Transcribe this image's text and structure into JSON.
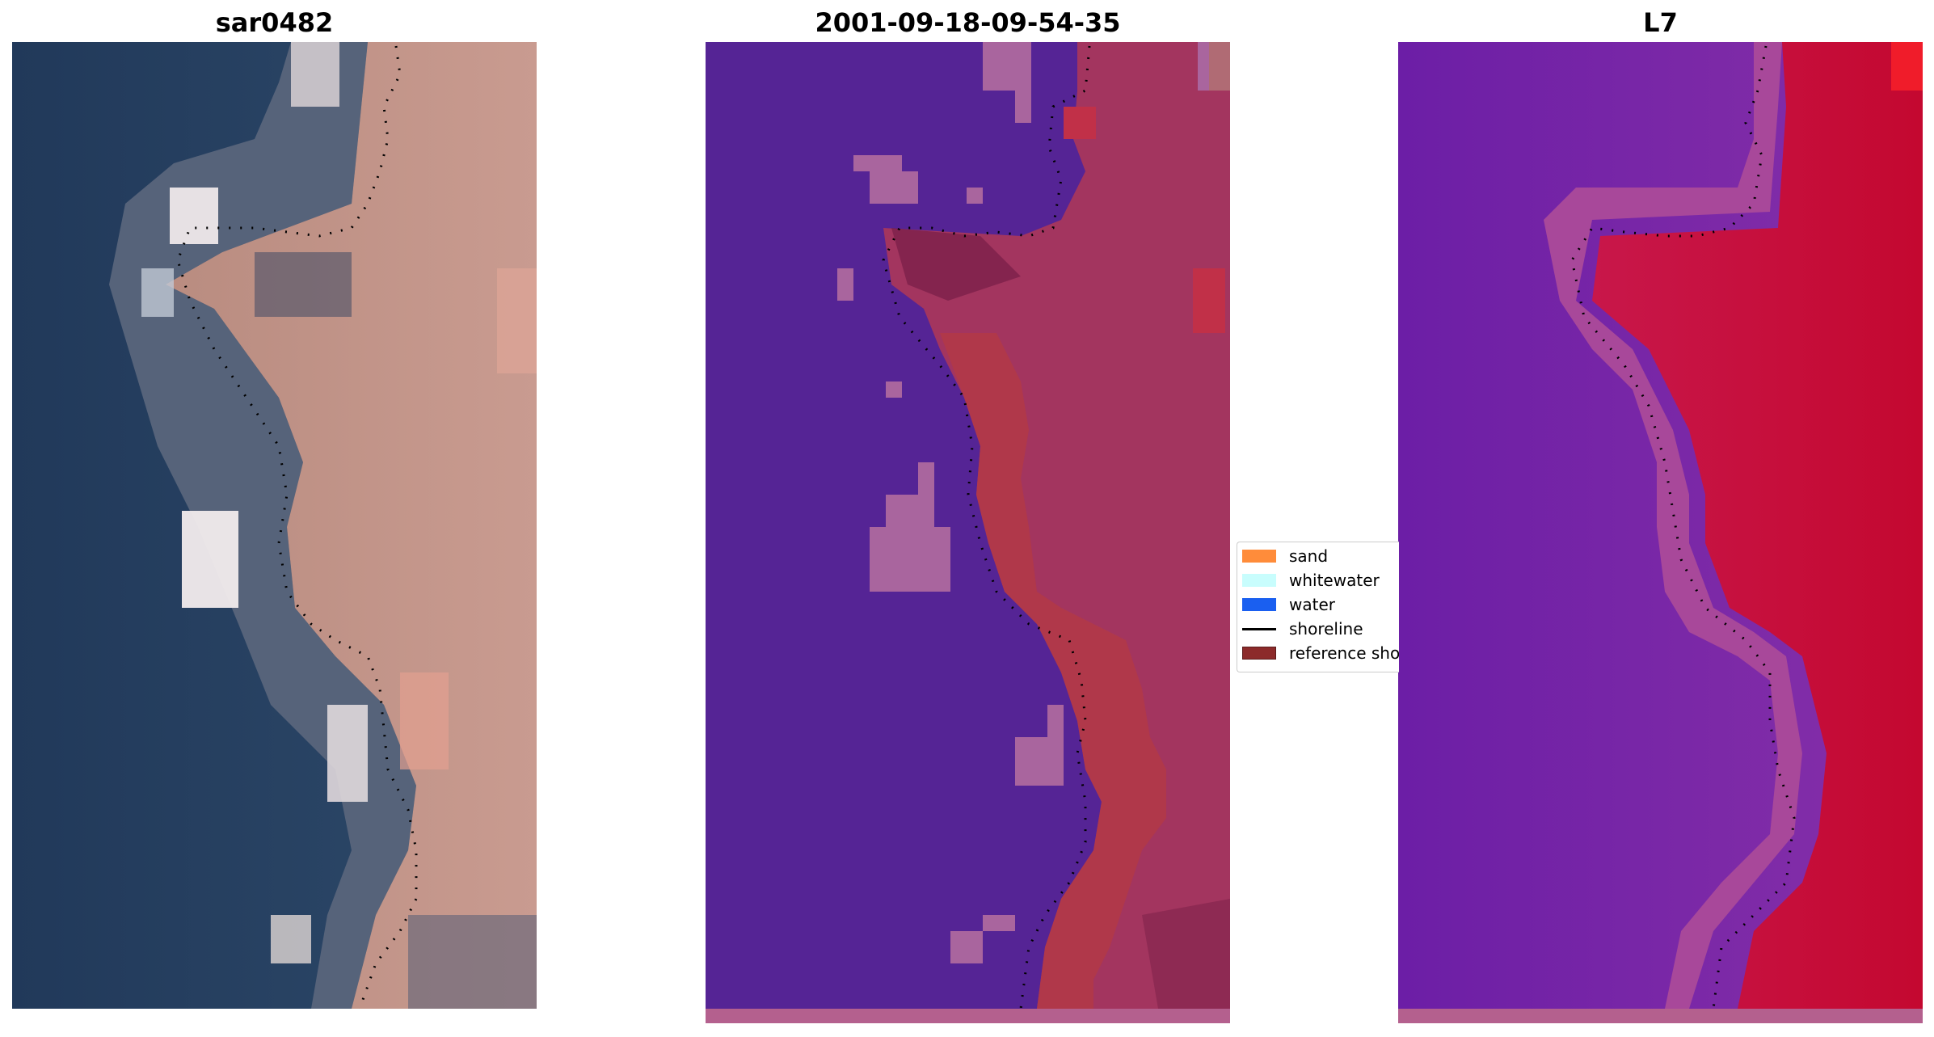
{
  "panels": [
    {
      "title": "sar0482"
    },
    {
      "title": "2001-09-18-09-54-35"
    },
    {
      "title": "L7"
    }
  ],
  "legend": {
    "items": [
      {
        "label": "sand",
        "color": "#ff8c3a"
      },
      {
        "label": "whitewater",
        "color": "#c8fdfd"
      },
      {
        "label": "water",
        "color": "#1a5ff0"
      },
      {
        "label": "shoreline",
        "color": "#000000"
      },
      {
        "label": "reference shoreline",
        "color": "#8c2a2a"
      }
    ]
  },
  "colors": {
    "water_class": "#552495",
    "sand_overlay": "#b0384a",
    "whitewater_overlay": "#a9659e",
    "land_left": "#c69a8e",
    "ocean_left": "#26405e",
    "l7_water": "#7524a6",
    "l7_land": "#c8103a",
    "bottom_strip": "#b4608e"
  }
}
